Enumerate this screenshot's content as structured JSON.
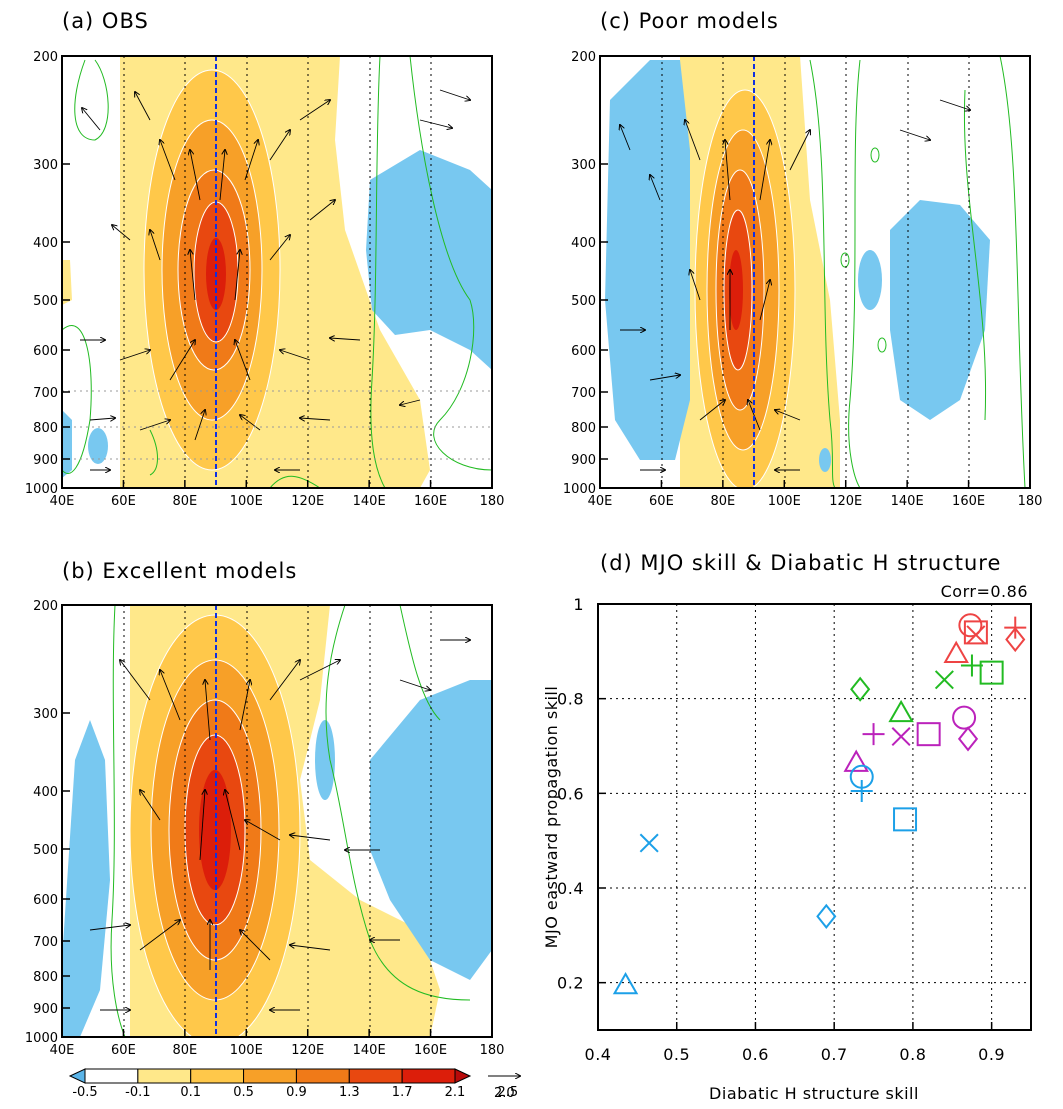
{
  "panels": {
    "a": {
      "title": "(a) OBS"
    },
    "b": {
      "title": "(b) Excellent models"
    },
    "c": {
      "title": "(c) Poor models"
    }
  },
  "section_axes": {
    "x_ticks": [
      "40E",
      "60E",
      "80E",
      "100E",
      "120E",
      "140E",
      "160E",
      "180"
    ],
    "y_ticks": [
      "200",
      "300",
      "400",
      "500",
      "600",
      "700",
      "800",
      "900",
      "1000"
    ],
    "x_range_deg": [
      40,
      180
    ],
    "y_range_hPa": [
      200,
      1000
    ],
    "reference_line_lon": 90
  },
  "colorbar": {
    "labels": [
      "-0.5",
      "-0.1",
      "0.1",
      "0.5",
      "0.9",
      "1.3",
      "1.7",
      "2.1",
      "2.5"
    ],
    "colors": [
      "#5ab4e8",
      "#ffffff",
      "#ffe88a",
      "#ffc84a",
      "#f7a028",
      "#f07a18",
      "#e84810",
      "#dc1e0a",
      "#b80a0a"
    ],
    "vector_reference": "2.0"
  },
  "colors": {
    "shade_negative": "#78c8f0",
    "contour_green": "#22bb22",
    "ref_line_blue": "#1030e0",
    "marker_red": "#ee4444",
    "marker_green": "#22bb22",
    "marker_purple": "#bb22bb",
    "marker_blue": "#1ca0e8"
  },
  "chart_data": {
    "type": "scatter",
    "title": "(d) MJO skill & Diabatic H structure",
    "annotation": "Corr=0.86",
    "xlabel": "Diabatic H structure skill",
    "ylabel": "MJO eastward propagation skill",
    "xlim": [
      0.4,
      0.95
    ],
    "ylim": [
      0.1,
      1.0
    ],
    "x_ticks": [
      "0.4",
      "0.5",
      "0.6",
      "0.7",
      "0.8",
      "0.9"
    ],
    "y_ticks": [
      "0.2",
      "0.4",
      "0.6",
      "0.8",
      "1"
    ],
    "grid": true,
    "points": [
      {
        "x": 0.873,
        "y": 0.955,
        "marker": "circle",
        "color": "red"
      },
      {
        "x": 0.88,
        "y": 0.94,
        "marker": "square",
        "color": "red"
      },
      {
        "x": 0.93,
        "y": 0.95,
        "marker": "plus",
        "color": "red"
      },
      {
        "x": 0.93,
        "y": 0.925,
        "marker": "diamond",
        "color": "red"
      },
      {
        "x": 0.88,
        "y": 0.935,
        "marker": "cross",
        "color": "red"
      },
      {
        "x": 0.855,
        "y": 0.895,
        "marker": "triangle",
        "color": "red"
      },
      {
        "x": 0.733,
        "y": 0.82,
        "marker": "diamond",
        "color": "green"
      },
      {
        "x": 0.785,
        "y": 0.77,
        "marker": "triangle",
        "color": "green"
      },
      {
        "x": 0.84,
        "y": 0.84,
        "marker": "cross",
        "color": "green"
      },
      {
        "x": 0.875,
        "y": 0.87,
        "marker": "plus",
        "color": "green"
      },
      {
        "x": 0.9,
        "y": 0.855,
        "marker": "square",
        "color": "green"
      },
      {
        "x": 0.865,
        "y": 0.76,
        "marker": "circle",
        "color": "purple"
      },
      {
        "x": 0.82,
        "y": 0.725,
        "marker": "square",
        "color": "purple"
      },
      {
        "x": 0.785,
        "y": 0.72,
        "marker": "cross",
        "color": "purple"
      },
      {
        "x": 0.75,
        "y": 0.725,
        "marker": "plus",
        "color": "purple"
      },
      {
        "x": 0.87,
        "y": 0.715,
        "marker": "diamond",
        "color": "purple"
      },
      {
        "x": 0.728,
        "y": 0.665,
        "marker": "triangle",
        "color": "purple"
      },
      {
        "x": 0.735,
        "y": 0.635,
        "marker": "circle",
        "color": "blue"
      },
      {
        "x": 0.735,
        "y": 0.605,
        "marker": "plus",
        "color": "blue"
      },
      {
        "x": 0.79,
        "y": 0.545,
        "marker": "square",
        "color": "blue"
      },
      {
        "x": 0.465,
        "y": 0.495,
        "marker": "cross",
        "color": "blue"
      },
      {
        "x": 0.69,
        "y": 0.34,
        "marker": "diamond",
        "color": "blue"
      },
      {
        "x": 0.435,
        "y": 0.195,
        "marker": "triangle",
        "color": "blue"
      }
    ]
  }
}
